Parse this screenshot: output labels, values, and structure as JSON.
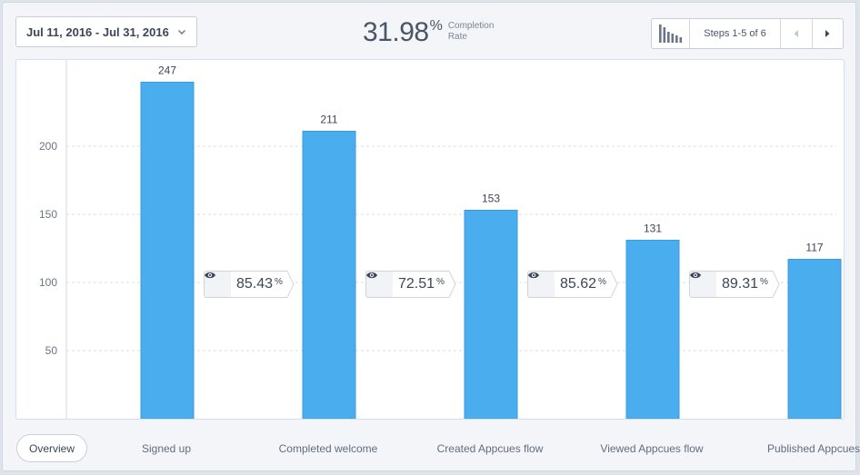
{
  "header": {
    "date_range": "Jul 11, 2016 - Jul 31, 2016",
    "completion_value": "31.98",
    "completion_unit": "%",
    "completion_label_line1": "Completion",
    "completion_label_line2": "Rate",
    "steps_label": "Steps 1-5 of 6"
  },
  "footer": {
    "overview_label": "Overview"
  },
  "colors": {
    "bar": "#4aaded",
    "bar_stroke": "#3b9be0",
    "grid": "#d8dde4"
  },
  "chart_data": {
    "type": "bar",
    "categories": [
      "Signed up",
      "Completed welcome",
      "Created Appcues flow",
      "Viewed Appcues flow",
      "Published Appcues"
    ],
    "values": [
      247,
      211,
      153,
      131,
      117
    ],
    "yticks": [
      50,
      100,
      150,
      200
    ],
    "ylim": [
      0,
      265
    ],
    "grid": true,
    "conversions": [
      {
        "value": "85.43",
        "unit": "%"
      },
      {
        "value": "72.51",
        "unit": "%"
      },
      {
        "value": "85.62",
        "unit": "%"
      },
      {
        "value": "89.31",
        "unit": "%"
      }
    ]
  }
}
